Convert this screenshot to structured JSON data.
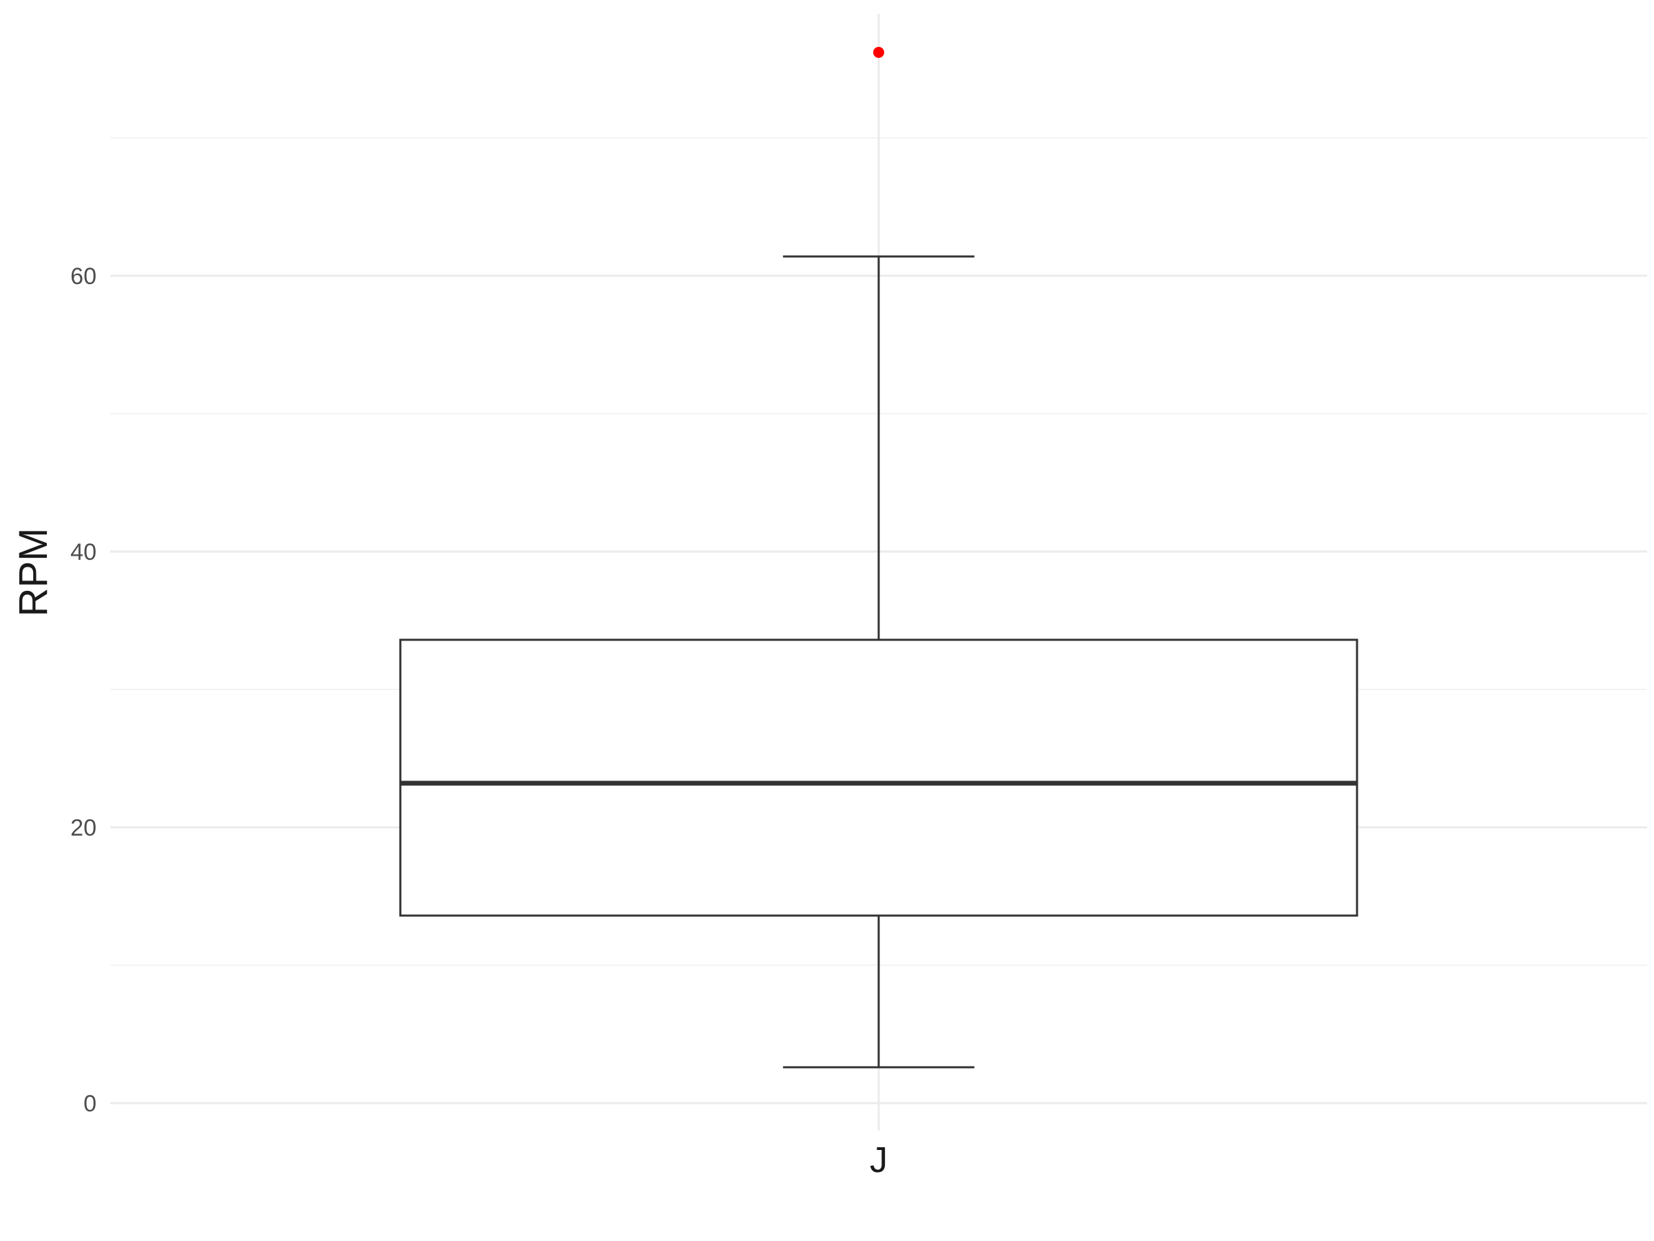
{
  "chart_data": {
    "type": "boxplot",
    "ylabel": "RPM",
    "xlabel": "",
    "categories": [
      "J"
    ],
    "ylim": [
      -2,
      79
    ],
    "yticks": [
      0,
      20,
      40,
      60
    ],
    "grid": true,
    "boxes": [
      {
        "category": "J",
        "whisker_low": 2.6,
        "q1": 13.6,
        "median": 23.2,
        "q3": 33.6,
        "whisker_high": 61.4,
        "outliers": [
          76.2
        ]
      }
    ],
    "colors": {
      "box_stroke": "#333333",
      "box_fill": "#ffffff",
      "outlier": "#ff0000",
      "grid_major": "#ebebeb",
      "grid_minor": "#f3f3f3"
    }
  }
}
